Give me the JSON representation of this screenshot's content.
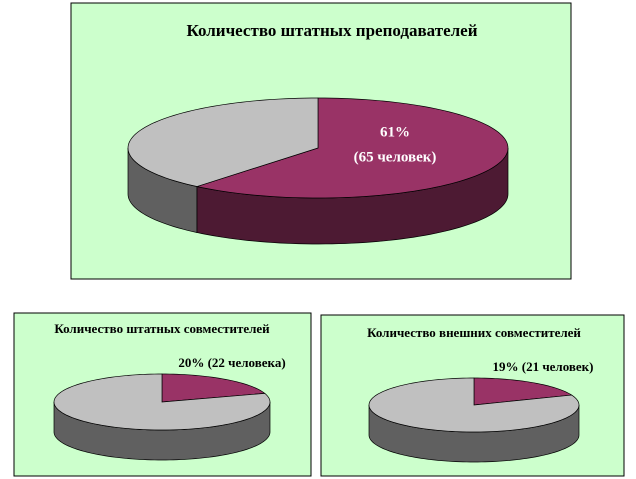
{
  "chart_data": [
    {
      "type": "pie",
      "title": "Количество штатных преподавателей",
      "values": [
        61,
        39
      ],
      "colors": [
        "#993366",
        "#c0c0c0"
      ],
      "value_labels": [
        "61%",
        null
      ],
      "annotations": [
        "(65 человек)"
      ]
    },
    {
      "type": "pie",
      "title": "Количество штатных совместителей",
      "values": [
        20,
        80
      ],
      "colors": [
        "#993366",
        "#c0c0c0"
      ],
      "value_labels": [
        "20% (22 человека)",
        null
      ]
    },
    {
      "type": "pie",
      "title": "Количество внешних совместителей",
      "values": [
        19,
        81
      ],
      "colors": [
        "#993366",
        "#c0c0c0"
      ],
      "value_labels": [
        "19% (21 человек)",
        null
      ]
    }
  ]
}
